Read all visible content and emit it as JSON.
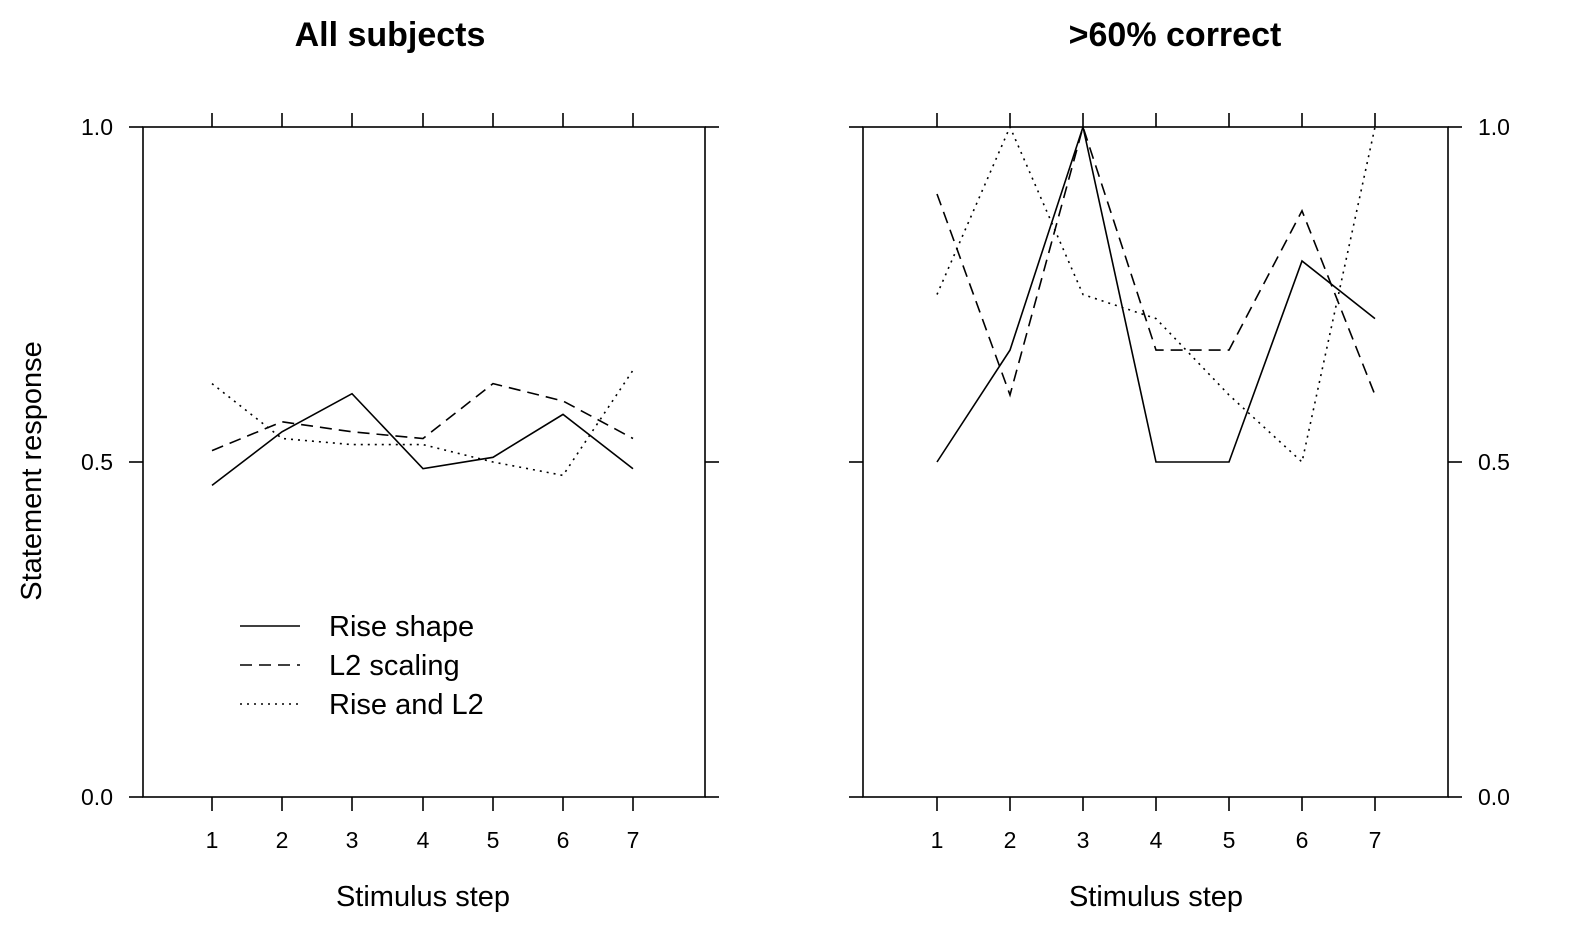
{
  "chart_data": [
    {
      "type": "line",
      "title": "All subjects",
      "xlabel": "Stimulus step",
      "ylabel": "Statement response",
      "x": [
        1,
        2,
        3,
        4,
        5,
        6,
        7
      ],
      "xticks": [
        "1",
        "2",
        "3",
        "4",
        "5",
        "6",
        "7"
      ],
      "yticks": [
        "0.0",
        "0.5",
        "1.0"
      ],
      "xlim": [
        0,
        8
      ],
      "ylim": [
        0,
        1
      ],
      "y_axis_side": "left",
      "grid": false,
      "legend_position": "bottom-left",
      "series": [
        {
          "name": "Rise shape",
          "style": "solid",
          "values": [
            0.465,
            0.545,
            0.602,
            0.49,
            0.507,
            0.571,
            0.49
          ]
        },
        {
          "name": "L2 scaling",
          "style": "dashed",
          "values": [
            0.517,
            0.56,
            0.545,
            0.535,
            0.617,
            0.591,
            0.535
          ]
        },
        {
          "name": "Rise and L2",
          "style": "dotted",
          "values": [
            0.617,
            0.535,
            0.526,
            0.526,
            0.5,
            0.48,
            0.637
          ]
        }
      ]
    },
    {
      "type": "line",
      "title": ">60% correct",
      "xlabel": "Stimulus step",
      "ylabel": "",
      "x": [
        1,
        2,
        3,
        4,
        5,
        6,
        7
      ],
      "xticks": [
        "1",
        "2",
        "3",
        "4",
        "5",
        "6",
        "7"
      ],
      "yticks": [
        "0.0",
        "0.5",
        "1.0"
      ],
      "xlim": [
        0,
        8
      ],
      "ylim": [
        0,
        1
      ],
      "y_axis_side": "right",
      "grid": false,
      "series": [
        {
          "name": "Rise shape",
          "style": "solid",
          "values": [
            0.5,
            0.667,
            1.0,
            0.5,
            0.5,
            0.8,
            0.714
          ]
        },
        {
          "name": "L2 scaling",
          "style": "dashed",
          "values": [
            0.9,
            0.6,
            1.0,
            0.667,
            0.667,
            0.875,
            0.6
          ]
        },
        {
          "name": "Rise and L2",
          "style": "dotted",
          "values": [
            0.75,
            1.0,
            0.75,
            0.714,
            0.6,
            0.5,
            1.0
          ]
        }
      ]
    }
  ]
}
